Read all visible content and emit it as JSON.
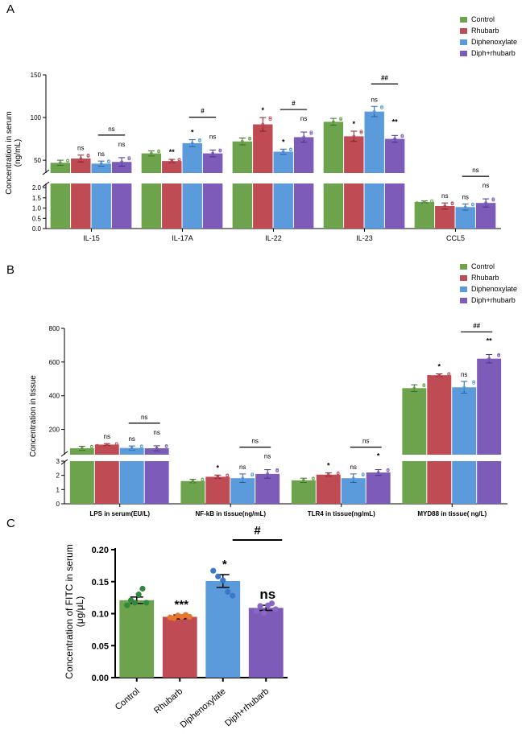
{
  "colors": {
    "control": "#6da34d",
    "rhubarb": "#bf4b55",
    "diphenoxylate": "#5b9bdc",
    "diph_rhubarb": "#7c5cb8",
    "rhubarb_c": "#e8772e",
    "axis": "#000000",
    "bg": "#ffffff"
  },
  "chart_data": [
    {
      "panel": "A",
      "type": "bar",
      "ylabel": "Concentration in serum\n(ng/mL)",
      "legend": [
        "Control",
        "Rhubarb",
        "Diphenoxylate",
        "Diph+rhubarb"
      ],
      "legend_position": "top-right",
      "categories": [
        "IL-15",
        "IL-17A",
        "IL-22",
        "IL-23",
        "CCL5"
      ],
      "series": [
        {
          "name": "Control",
          "values": [
            47,
            58,
            72,
            95,
            1.3
          ],
          "errors": [
            3,
            3,
            4,
            4,
            0.05
          ]
        },
        {
          "name": "Rhubarb",
          "values": [
            52,
            49,
            92,
            78,
            1.1
          ],
          "errors": [
            4,
            2,
            8,
            6,
            0.15
          ]
        },
        {
          "name": "Diphenoxylate",
          "values": [
            46,
            70,
            60,
            107,
            1.05
          ],
          "errors": [
            3,
            4,
            3,
            6,
            0.15
          ]
        },
        {
          "name": "Diph+rhubarb",
          "values": [
            48,
            58,
            77,
            75,
            1.25
          ],
          "errors": [
            5,
            4,
            6,
            4,
            0.2
          ]
        }
      ],
      "y_upper_ticks": [
        "50",
        "100",
        "150"
      ],
      "y_upper_range": [
        35,
        150
      ],
      "y_lower_ticks": [
        "0.0",
        "0.5",
        "1.0",
        "1.5",
        "2.0"
      ],
      "y_lower_range": [
        0,
        2.2
      ],
      "annotations": [
        [
          "ns",
          "ns",
          "ns"
        ],
        [
          "**",
          "*",
          "ns"
        ],
        [
          "*",
          "*",
          "ns"
        ],
        [
          "*",
          "ns",
          "**"
        ],
        [
          "ns",
          "ns",
          "ns"
        ]
      ],
      "comparisons": [
        "ns",
        "#",
        "#",
        "##",
        "ns"
      ]
    },
    {
      "panel": "B",
      "type": "bar",
      "ylabel": "Concentration in tissue",
      "legend": [
        "Control",
        "Rhubarb",
        "Diphenoxylate",
        "Diph+rhubarb"
      ],
      "legend_position": "top-right",
      "categories": [
        "LPS in serum(EU/L)",
        "NF-kB in tissue(ng/mL)",
        "TLR4 in tissue(ng/mL)",
        "MYD88 in tissue( ng/L)"
      ],
      "series": [
        {
          "name": "Control",
          "values": [
            88,
            1.6,
            1.65,
            445
          ],
          "errors": [
            12,
            0.12,
            0.15,
            20
          ]
        },
        {
          "name": "Rhubarb",
          "values": [
            110,
            1.9,
            2.05,
            522
          ],
          "errors": [
            6,
            0.12,
            0.12,
            8
          ]
        },
        {
          "name": "Diphenoxylate",
          "values": [
            90,
            1.8,
            1.8,
            450
          ],
          "errors": [
            12,
            0.3,
            0.3,
            35
          ]
        },
        {
          "name": "Diph+rhubarb",
          "values": [
            88,
            2.1,
            2.2,
            620
          ],
          "errors": [
            15,
            0.3,
            0.2,
            25
          ]
        }
      ],
      "y_upper_ticks": [
        "200",
        "400",
        "600",
        "800"
      ],
      "y_upper_range": [
        50,
        800
      ],
      "y_lower_ticks": [
        "0",
        "1",
        "2",
        "3"
      ],
      "y_lower_range": [
        0,
        3
      ],
      "annotations": [
        [
          "ns",
          "ns",
          "ns"
        ],
        [
          "*",
          "ns",
          "ns"
        ],
        [
          "*",
          "ns",
          "*"
        ],
        [
          "*",
          "ns",
          "**"
        ]
      ],
      "comparisons": [
        "ns",
        "ns",
        "ns",
        "##"
      ]
    },
    {
      "panel": "C",
      "type": "bar",
      "ylabel": "Concentration of FITC in serum\n(μg/μL)",
      "categories": [
        "Control",
        "Rhubarb",
        "Diphenoxylate",
        "Diph+rhubarb"
      ],
      "values": [
        0.121,
        0.095,
        0.151,
        0.109
      ],
      "errors": [
        0.005,
        0.003,
        0.01,
        0.004
      ],
      "points": [
        [
          0.113,
          0.121,
          0.117,
          0.13,
          0.139,
          0.117
        ],
        [
          0.094,
          0.093,
          0.097,
          0.095,
          0.098,
          0.095
        ],
        [
          0.167,
          0.158,
          0.152,
          0.134,
          0.128
        ],
        [
          0.104,
          0.112,
          0.101,
          0.113,
          0.116,
          0.107
        ]
      ],
      "yticks": [
        "0.00",
        "0.05",
        "0.10",
        "0.15",
        "0.20"
      ],
      "ylim": [
        0,
        0.2
      ],
      "annotations": [
        "",
        "***",
        "*",
        "ns"
      ],
      "comparison": "#"
    }
  ]
}
